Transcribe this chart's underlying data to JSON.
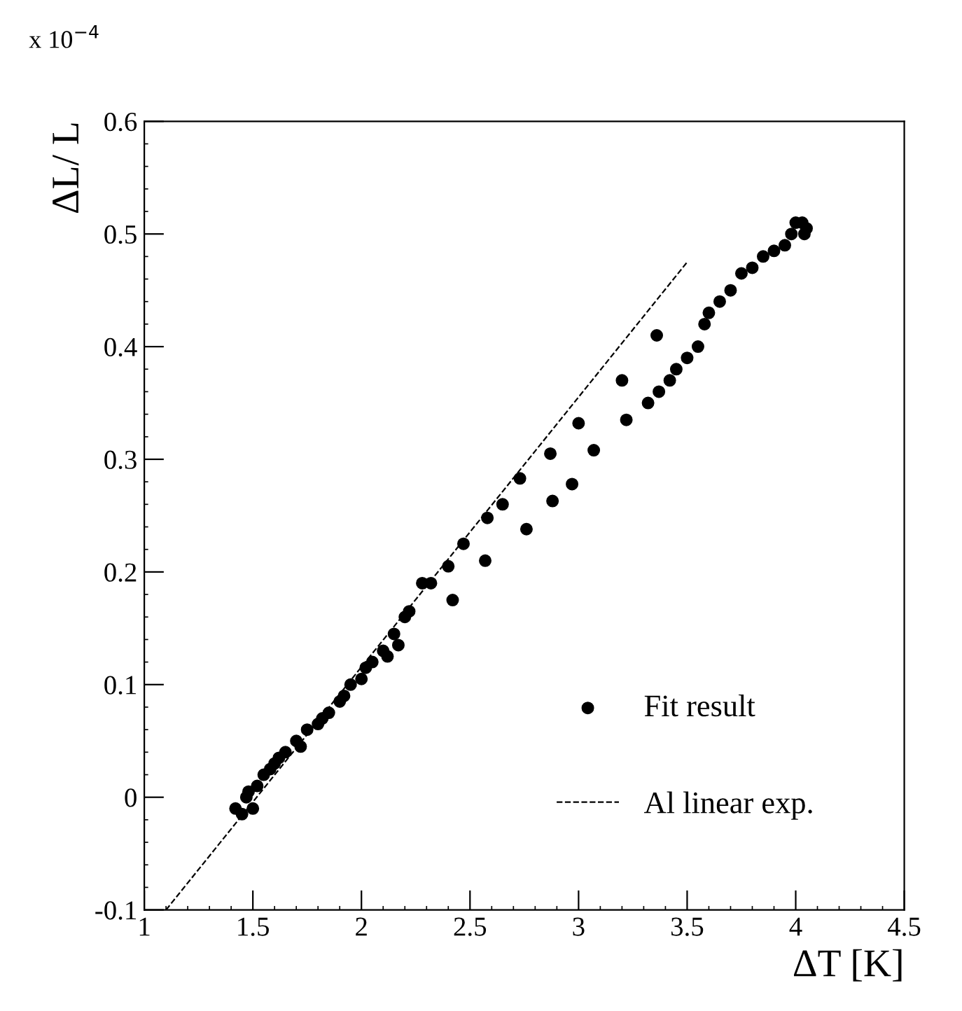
{
  "chart_data": {
    "type": "scatter",
    "xlabel": "ΔT [K]",
    "ylabel": "ΔL/ L",
    "annotations": [
      "x 10$^{−4}$"
    ],
    "xlim": [
      1,
      4.5
    ],
    "xticks": [
      1,
      1.5,
      2,
      2.5,
      3,
      3.5,
      4,
      4.5
    ],
    "ylim": [
      -0.1,
      0.6
    ],
    "yticks": [
      -0.1,
      0,
      0.1,
      0.2,
      0.3,
      0.4,
      0.5,
      0.6
    ],
    "grid": false,
    "legend": "bottom right",
    "series": [
      {
        "name": "Fit result",
        "marker": "circle",
        "color": "#000000",
        "x": [
          1.42,
          1.45,
          1.47,
          1.5,
          1.48,
          1.52,
          1.55,
          1.58,
          1.6,
          1.62,
          1.65,
          1.7,
          1.72,
          1.75,
          1.8,
          1.82,
          1.85,
          1.9,
          1.92,
          1.95,
          2.0,
          2.02,
          2.05,
          2.1,
          2.12,
          2.15,
          2.17,
          2.2,
          2.22,
          2.28,
          2.32,
          2.4,
          2.42,
          2.47,
          2.57,
          2.58,
          2.65,
          2.73,
          2.76,
          2.87,
          2.88,
          2.97,
          3.0,
          3.07,
          3.2,
          3.22,
          3.32,
          3.36,
          3.37,
          3.42,
          3.45,
          3.5,
          3.55,
          3.58,
          3.6,
          3.65,
          3.7,
          3.75,
          3.8,
          3.85,
          3.9,
          3.95,
          3.98,
          4.0,
          4.03,
          4.05,
          4.04
        ],
        "values": [
          -0.01,
          -0.015,
          0.0,
          -0.01,
          0.005,
          0.01,
          0.02,
          0.025,
          0.03,
          0.035,
          0.04,
          0.05,
          0.045,
          0.06,
          0.065,
          0.07,
          0.075,
          0.085,
          0.09,
          0.1,
          0.105,
          0.115,
          0.12,
          0.13,
          0.125,
          0.145,
          0.135,
          0.16,
          0.165,
          0.19,
          0.19,
          0.205,
          0.175,
          0.225,
          0.21,
          0.248,
          0.26,
          0.283,
          0.238,
          0.305,
          0.263,
          0.278,
          0.332,
          0.308,
          0.37,
          0.335,
          0.35,
          0.41,
          0.36,
          0.37,
          0.38,
          0.39,
          0.4,
          0.42,
          0.43,
          0.44,
          0.45,
          0.465,
          0.47,
          0.48,
          0.485,
          0.49,
          0.5,
          0.51,
          0.51,
          0.505,
          0.5
        ]
      },
      {
        "name": "Al linear exp.",
        "type": "line",
        "line_style": "dashed",
        "color": "#000000",
        "x": [
          1.1,
          3.5
        ],
        "values": [
          -0.1,
          0.475
        ]
      }
    ]
  }
}
